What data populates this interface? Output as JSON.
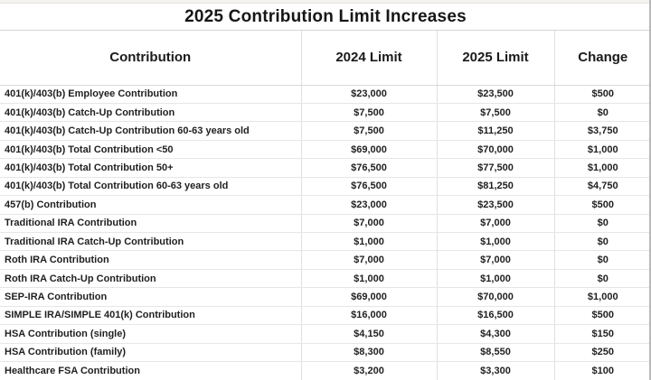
{
  "chart_data": {
    "type": "table",
    "title": "2025 Contribution Limit Increases",
    "columns": [
      "Contribution",
      "2024 Limit",
      "2025 Limit",
      "Change"
    ],
    "rows": [
      [
        "401(k)/403(b) Employee Contribution",
        "$23,000",
        "$23,500",
        "$500"
      ],
      [
        "401(k)/403(b) Catch-Up Contribution",
        "$7,500",
        "$7,500",
        "$0"
      ],
      [
        "401(k)/403(b) Catch-Up Contribution 60-63 years old",
        "$7,500",
        "$11,250",
        "$3,750"
      ],
      [
        "401(k)/403(b) Total Contribution <50",
        "$69,000",
        "$70,000",
        "$1,000"
      ],
      [
        "401(k)/403(b) Total Contribution 50+",
        "$76,500",
        "$77,500",
        "$1,000"
      ],
      [
        "401(k)/403(b) Total Contribution 60-63 years old",
        "$76,500",
        "$81,250",
        "$4,750"
      ],
      [
        "457(b) Contribution",
        "$23,000",
        "$23,500",
        "$500"
      ],
      [
        "Traditional IRA Contribution",
        "$7,000",
        "$7,000",
        "$0"
      ],
      [
        "Traditional IRA Catch-Up Contribution",
        "$1,000",
        "$1,000",
        "$0"
      ],
      [
        "Roth IRA Contribution",
        "$7,000",
        "$7,000",
        "$0"
      ],
      [
        "Roth IRA Catch-Up Contribution",
        "$1,000",
        "$1,000",
        "$0"
      ],
      [
        "SEP-IRA Contribution",
        "$69,000",
        "$70,000",
        "$1,000"
      ],
      [
        "SIMPLE IRA/SIMPLE 401(k) Contribution",
        "$16,000",
        "$16,500",
        "$500"
      ],
      [
        "HSA Contribution (single)",
        "$4,150",
        "$4,300",
        "$150"
      ],
      [
        "HSA Contribution (family)",
        "$8,300",
        "$8,550",
        "$250"
      ],
      [
        "Healthcare FSA Contribution",
        "$3,200",
        "$3,300",
        "$100"
      ]
    ],
    "layout": {
      "grid": true,
      "legend": "none",
      "value_alignment": "center",
      "label_alignment": "left"
    }
  },
  "colors": {
    "text": "#1f1f1f",
    "gridline": "#e2e2e2",
    "header_rule": "#d6d6d6",
    "page_bg": "#ffffff",
    "right_edge": "#b9b9b9"
  }
}
